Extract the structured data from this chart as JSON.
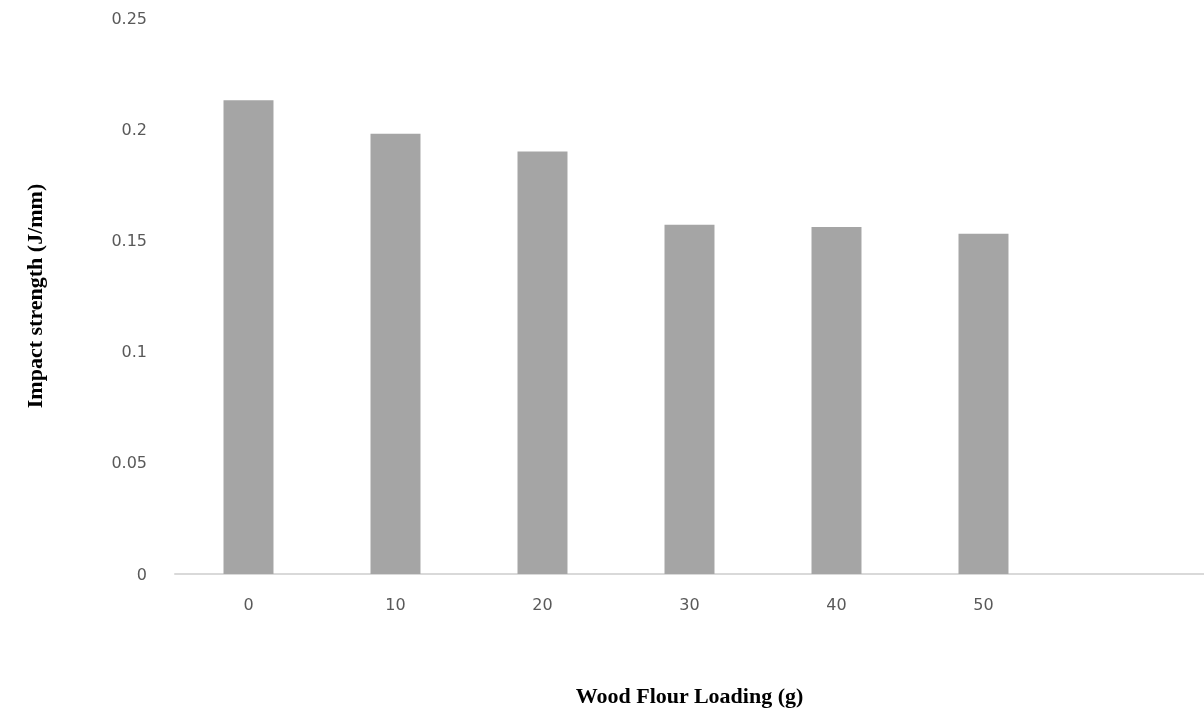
{
  "chart_data": {
    "type": "bar",
    "xlabel": "Wood Flour Loading (g)",
    "ylabel": "Impact strength (J/mm)",
    "categories": [
      "0",
      "10",
      "20",
      "30",
      "40",
      "50",
      null
    ],
    "values": [
      0.213,
      0.198,
      0.19,
      0.157,
      0.156,
      0.153,
      null
    ],
    "color": "#a5a5a5",
    "ylim": [
      0,
      0.25
    ],
    "yticks": [
      0,
      0.05,
      0.1,
      0.15,
      0.2,
      0.25
    ],
    "grid": false
  }
}
